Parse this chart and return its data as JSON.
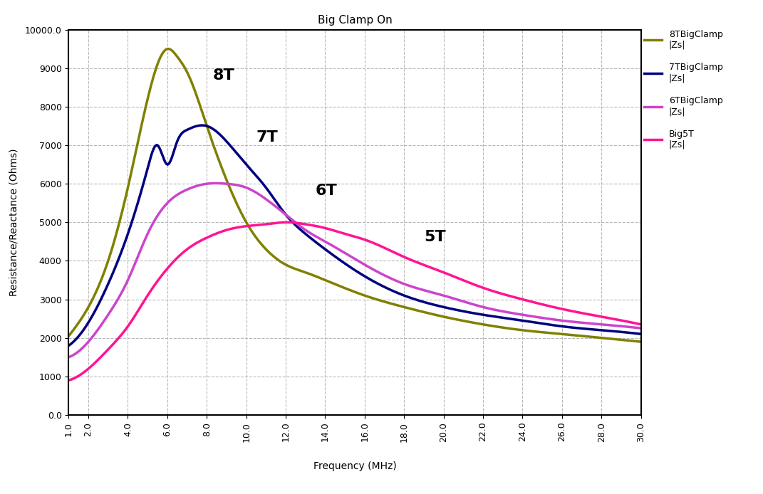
{
  "title": "Big Clamp On",
  "xlabel": "Frequency (MHz)",
  "ylabel": "Resistance/Reactance (Ohms)",
  "xlim": [
    1.0,
    30.0
  ],
  "ylim": [
    0.0,
    10000.0
  ],
  "xticks": [
    1.0,
    2.0,
    4.0,
    6.0,
    8.0,
    10.0,
    12.0,
    14.0,
    16.0,
    18.0,
    20.0,
    22.0,
    24.0,
    26.0,
    28.0,
    30.0
  ],
  "yticks": [
    0.0,
    1000,
    2000,
    3000,
    4000,
    5000,
    6000,
    7000,
    8000,
    9000,
    10000.0
  ],
  "series": [
    {
      "label": "8TBigClamp\n|Zs|",
      "color": "#808000",
      "linewidth": 2.5,
      "annotation": "8T",
      "ann_x": 8.3,
      "ann_y": 8700,
      "knot_x": [
        1.0,
        2.0,
        3.0,
        4.0,
        5.0,
        5.5,
        6.0,
        6.5,
        7.0,
        8.0,
        9.0,
        10.0,
        11.0,
        12.0,
        13.0,
        14.0,
        16.0,
        18.0,
        20.0,
        22.0,
        24.0,
        26.0,
        28.0,
        30.0
      ],
      "knot_y": [
        2050,
        2800,
        4000,
        5900,
        8200,
        9100,
        9500,
        9300,
        8900,
        7500,
        6100,
        5000,
        4300,
        3900,
        3700,
        3500,
        3100,
        2800,
        2550,
        2350,
        2200,
        2100,
        2000,
        1900
      ]
    },
    {
      "label": "7TBigClamp\n|Zs|",
      "color": "#000080",
      "linewidth": 2.5,
      "annotation": "7T",
      "ann_x": 10.5,
      "ann_y": 7100,
      "knot_x": [
        1.0,
        2.0,
        3.0,
        4.0,
        5.0,
        5.5,
        6.0,
        6.5,
        7.0,
        7.5,
        8.0,
        9.0,
        10.0,
        11.0,
        12.0,
        13.0,
        14.0,
        16.0,
        18.0,
        20.0,
        22.0,
        24.0,
        26.0,
        28.0,
        30.0
      ],
      "knot_y": [
        1800,
        2400,
        3400,
        4700,
        6400,
        7000,
        6500,
        7100,
        7400,
        7500,
        7500,
        7100,
        6500,
        5900,
        5200,
        4700,
        4300,
        3600,
        3100,
        2800,
        2600,
        2450,
        2300,
        2200,
        2100
      ]
    },
    {
      "label": "6TBigClamp\n|Zs|",
      "color": "#CC44CC",
      "linewidth": 2.5,
      "annotation": "6T",
      "ann_x": 13.5,
      "ann_y": 5700,
      "knot_x": [
        1.0,
        2.0,
        3.0,
        4.0,
        5.0,
        6.0,
        7.0,
        8.0,
        9.0,
        10.0,
        11.0,
        12.0,
        13.0,
        14.0,
        16.0,
        18.0,
        20.0,
        22.0,
        24.0,
        26.0,
        28.0,
        30.0
      ],
      "knot_y": [
        1500,
        1900,
        2600,
        3500,
        4700,
        5500,
        5850,
        6000,
        6000,
        5900,
        5600,
        5200,
        4800,
        4500,
        3900,
        3400,
        3100,
        2800,
        2600,
        2450,
        2350,
        2250
      ]
    },
    {
      "label": "Big5T\n|Zs|",
      "color": "#FF1493",
      "linewidth": 2.5,
      "annotation": "5T",
      "ann_x": 19.0,
      "ann_y": 4500,
      "knot_x": [
        1.0,
        2.0,
        3.0,
        4.0,
        5.0,
        6.0,
        7.0,
        8.0,
        9.0,
        10.0,
        11.0,
        12.0,
        13.0,
        14.0,
        15.0,
        16.0,
        18.0,
        20.0,
        22.0,
        24.0,
        26.0,
        28.0,
        30.0
      ],
      "knot_y": [
        900,
        1200,
        1700,
        2300,
        3100,
        3800,
        4300,
        4600,
        4800,
        4900,
        4950,
        5000,
        4950,
        4850,
        4700,
        4550,
        4100,
        3700,
        3300,
        3000,
        2750,
        2550,
        2350
      ]
    }
  ],
  "background_color": "#ffffff",
  "grid_color": "#b8b8b8",
  "title_fontsize": 11,
  "label_fontsize": 10,
  "tick_fontsize": 9,
  "annotation_fontsize": 16
}
